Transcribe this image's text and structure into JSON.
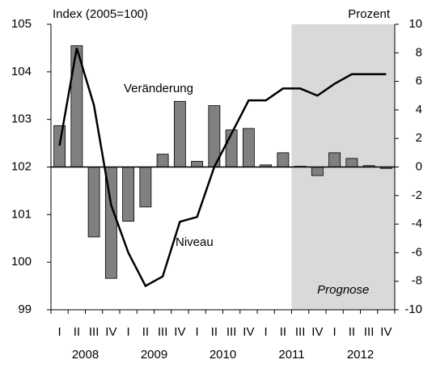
{
  "chart_data": {
    "type": "bar-line",
    "y_axis_label": "Index (2005=100)",
    "y2_axis_label": "Prozent",
    "categories": [
      "I",
      "II",
      "III",
      "IV",
      "I",
      "II",
      "III",
      "IV",
      "I",
      "II",
      "III",
      "IV",
      "I",
      "II",
      "III",
      "IV",
      "I",
      "II",
      "III",
      "IV"
    ],
    "x_groups": [
      "2008",
      "2009",
      "2010",
      "2011",
      "2012"
    ],
    "ylim": [
      99,
      105
    ],
    "yticks": [
      99,
      100,
      101,
      102,
      103,
      104,
      105
    ],
    "y2lim": [
      -10,
      10
    ],
    "y2ticks": [
      -10,
      -8,
      -6,
      -4,
      -2,
      0,
      2,
      4,
      6,
      8,
      10
    ],
    "series": [
      {
        "name": "Veränderung",
        "type": "bar",
        "axis": "y2",
        "color": "#808080",
        "values": [
          2.9,
          8.5,
          -4.9,
          -7.8,
          -3.8,
          -2.8,
          0.9,
          4.6,
          0.4,
          4.3,
          2.6,
          2.7,
          0.15,
          1.0,
          0.05,
          -0.6,
          1.0,
          0.6,
          0.1,
          -0.1
        ]
      },
      {
        "name": "Niveau",
        "type": "line",
        "axis": "y",
        "color": "#000000",
        "values": [
          102.45,
          104.5,
          103.3,
          101.2,
          100.2,
          99.5,
          99.7,
          100.85,
          100.95,
          102.0,
          102.7,
          103.4,
          103.4,
          103.65,
          103.65,
          103.5,
          103.75,
          103.95,
          103.95,
          103.95
        ]
      }
    ],
    "forecast": {
      "label": "Prognose",
      "start_index": 14,
      "color": "#d9d9d9"
    }
  }
}
